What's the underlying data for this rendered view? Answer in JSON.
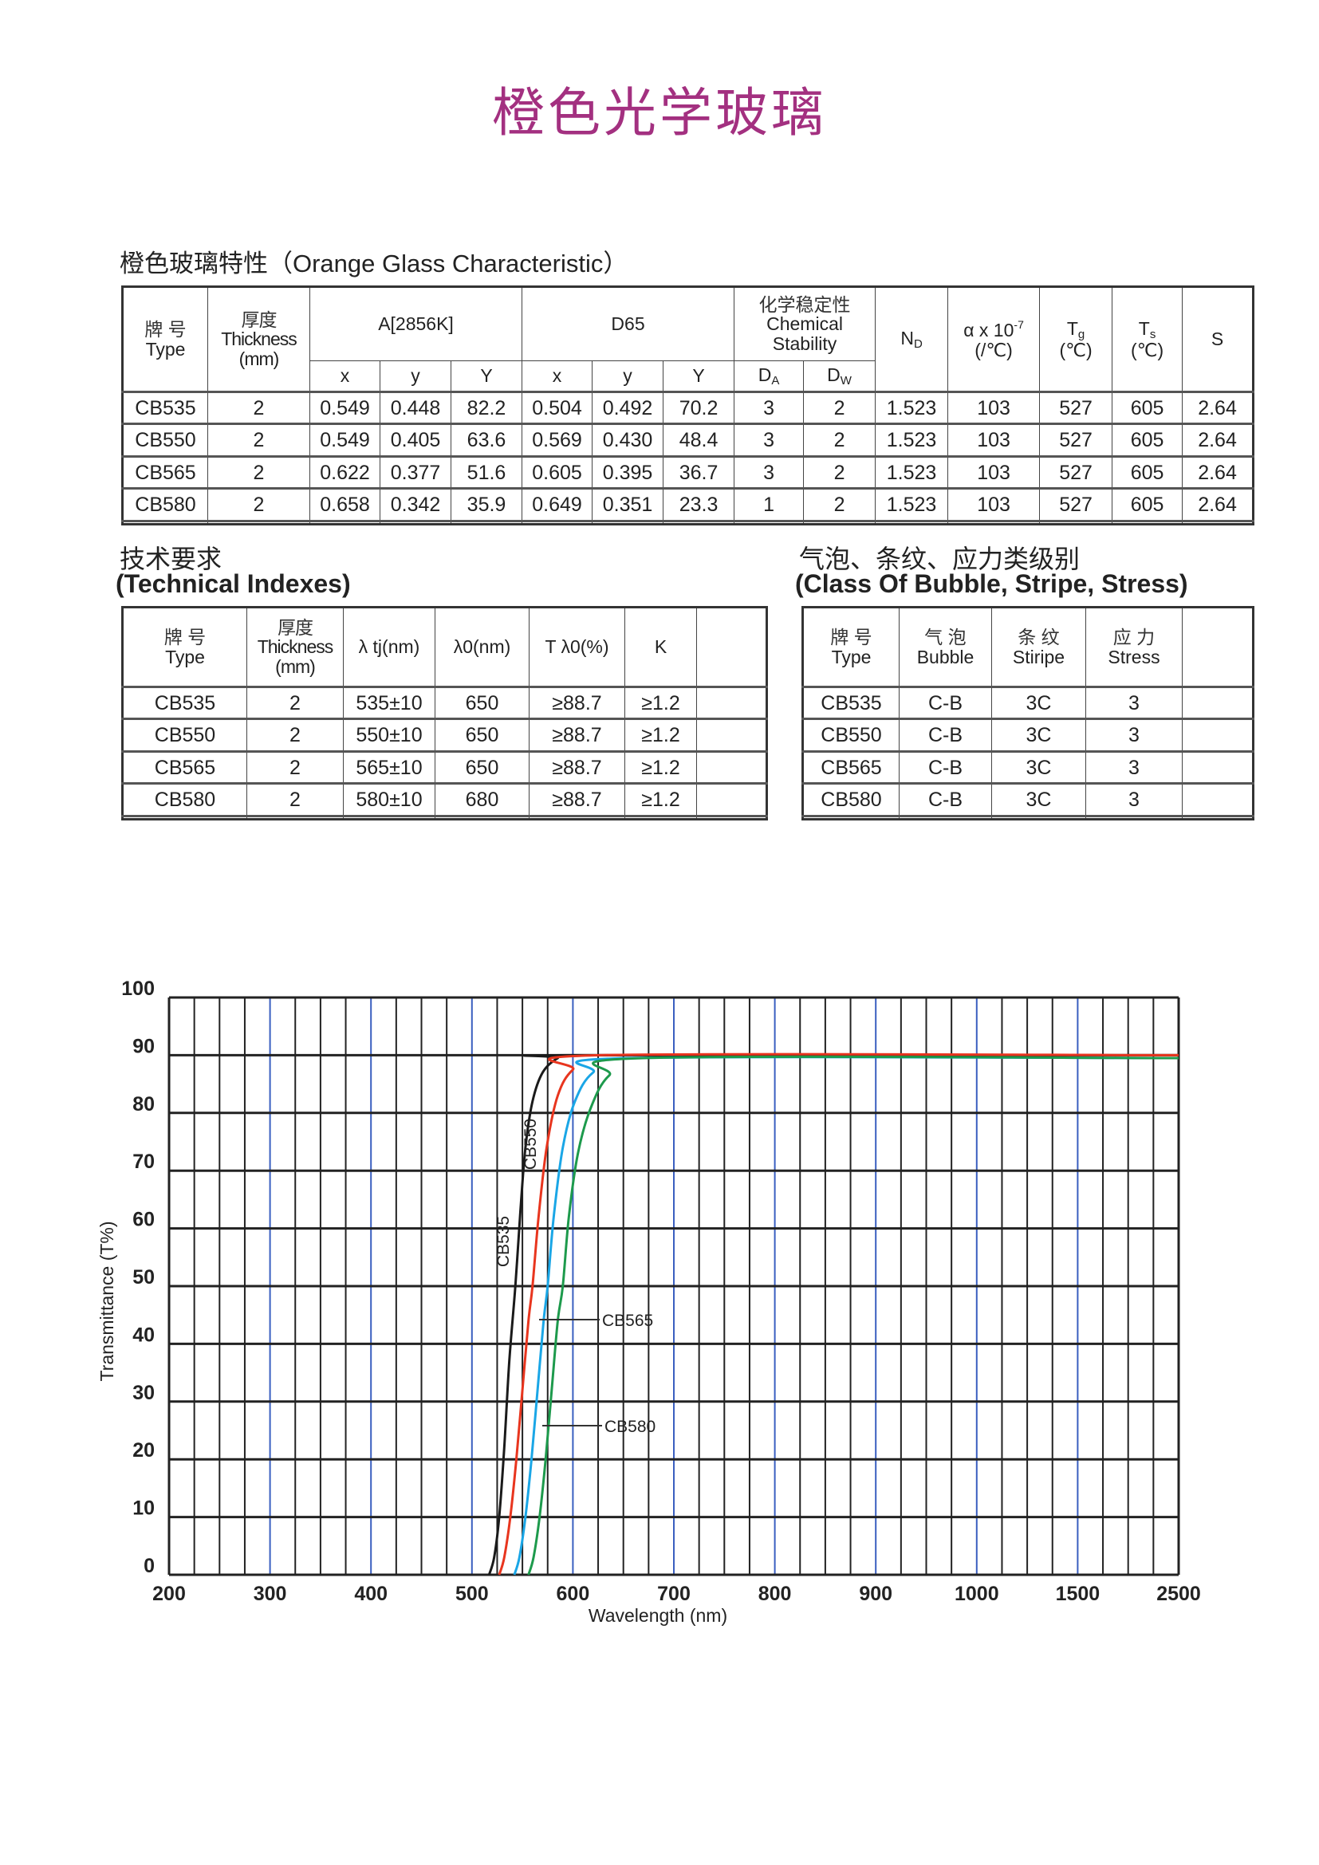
{
  "title": "橙色光学玻璃",
  "characteristics": {
    "heading": "橙色玻璃特性（Orange Glass Characteristic）",
    "headers": {
      "type_cn": "牌  号",
      "type_en": "Type",
      "thick_cn": "厚度",
      "thick_en": "Thickness",
      "thick_unit": "(mm)",
      "a": "A[2856K]",
      "d65": "D65",
      "chem_cn": "化学稳定性",
      "chem_en1": "Chemical",
      "chem_en2": "Stability",
      "nd": "N",
      "nd_sub": "D",
      "alpha": "α x 10",
      "alpha_sup": "-7",
      "alpha_unit": "(/℃)",
      "tg": "T",
      "tg_sub": "g",
      "tg_unit": "(℃)",
      "ts": "T",
      "ts_sub": "s",
      "ts_unit": "(℃)",
      "s": "S",
      "x": "x",
      "y": "y",
      "Y": "Y",
      "da": "D",
      "da_sub": "A",
      "dw": "D",
      "dw_sub": "W"
    },
    "rows": [
      [
        "CB535",
        "2",
        "0.549",
        "0.448",
        "82.2",
        "0.504",
        "0.492",
        "70.2",
        "3",
        "2",
        "1.523",
        "103",
        "527",
        "605",
        "2.64"
      ],
      [
        "CB550",
        "2",
        "0.549",
        "0.405",
        "63.6",
        "0.569",
        "0.430",
        "48.4",
        "3",
        "2",
        "1.523",
        "103",
        "527",
        "605",
        "2.64"
      ],
      [
        "CB565",
        "2",
        "0.622",
        "0.377",
        "51.6",
        "0.605",
        "0.395",
        "36.7",
        "3",
        "2",
        "1.523",
        "103",
        "527",
        "605",
        "2.64"
      ],
      [
        "CB580",
        "2",
        "0.658",
        "0.342",
        "35.9",
        "0.649",
        "0.351",
        "23.3",
        "1",
        "2",
        "1.523",
        "103",
        "527",
        "605",
        "2.64"
      ]
    ]
  },
  "technical": {
    "heading_cn": "技术要求",
    "heading_en": "(Technical Indexes)",
    "headers": {
      "type_cn": "牌  号",
      "type_en": "Type",
      "thick_cn": "厚度",
      "thick_en": "Thickness",
      "thick_unit": "(mm)",
      "ltj": "λ tj(nm)",
      "l0": "λ0(nm)",
      "tl0": "T λ0(%)",
      "k": "K"
    },
    "rows": [
      [
        "CB535",
        "2",
        "535±10",
        "650",
        "≥88.7",
        "≥1.2"
      ],
      [
        "CB550",
        "2",
        "550±10",
        "650",
        "≥88.7",
        "≥1.2"
      ],
      [
        "CB565",
        "2",
        "565±10",
        "650",
        "≥88.7",
        "≥1.2"
      ],
      [
        "CB580",
        "2",
        "580±10",
        "680",
        "≥88.7",
        "≥1.2"
      ]
    ]
  },
  "bubble": {
    "heading_cn": "气泡、条纹、应力类级别",
    "heading_en": "(Class Of Bubble, Stripe, Stress)",
    "headers": {
      "type_cn": "牌 号",
      "type_en": "Type",
      "bubble_cn": "气 泡",
      "bubble_en": "Bubble",
      "stripe_cn": "条 纹",
      "stripe_en": "Stiripe",
      "stress_cn": "应 力",
      "stress_en": "Stress"
    },
    "rows": [
      [
        "CB535",
        "C-B",
        "3C",
        "3"
      ],
      [
        "CB550",
        "C-B",
        "3C",
        "3"
      ],
      [
        "CB565",
        "C-B",
        "3C",
        "3"
      ],
      [
        "CB580",
        "C-B",
        "3C",
        "3"
      ]
    ]
  },
  "chart_data": {
    "type": "line",
    "xlabel": "Wavelength (nm)",
    "ylabel": "Transmittance (T%)",
    "x_ticks": [
      200,
      300,
      400,
      500,
      600,
      700,
      800,
      900,
      1000,
      1500,
      2500
    ],
    "y_ticks": [
      0,
      10,
      20,
      30,
      40,
      50,
      60,
      70,
      80,
      90,
      100
    ],
    "ylim": [
      0,
      100
    ],
    "grid": true,
    "series": [
      {
        "name": "CB535",
        "color": "#1a1a1a",
        "x": [
          517,
          522,
          527,
          532,
          537,
          543,
          548,
          553,
          560,
          570,
          585,
          600,
          2500
        ],
        "y": [
          0,
          3,
          10,
          22,
          37,
          50,
          63,
          74,
          82,
          87,
          89.5,
          90,
          90
        ]
      },
      {
        "name": "CB550",
        "color": "#e8351e",
        "x": [
          527,
          532,
          538,
          544,
          550,
          556,
          560,
          566,
          574,
          585,
          600,
          627,
          2500
        ],
        "y": [
          0,
          3,
          10,
          20,
          32,
          44,
          50,
          62,
          74,
          83,
          87.5,
          90,
          90
        ]
      },
      {
        "name": "CB565",
        "color": "#1aa6e6",
        "x": [
          542,
          547,
          553,
          559,
          565,
          571,
          575,
          581,
          590,
          602,
          620,
          655,
          2500
        ],
        "y": [
          0,
          3,
          10,
          20,
          32,
          44,
          50,
          62,
          74,
          82,
          87,
          89.5,
          89.5
        ]
      },
      {
        "name": "CB580",
        "color": "#1d9a4c",
        "x": [
          556,
          561,
          567,
          573,
          579,
          585,
          590,
          596,
          605,
          618,
          636,
          670,
          2500
        ],
        "y": [
          0,
          3,
          10,
          20,
          32,
          44,
          50,
          62,
          73,
          81,
          86.5,
          89.5,
          89.5
        ]
      }
    ],
    "annotations": [
      "CB535",
      "CB550",
      "CB565",
      "CB580"
    ]
  }
}
